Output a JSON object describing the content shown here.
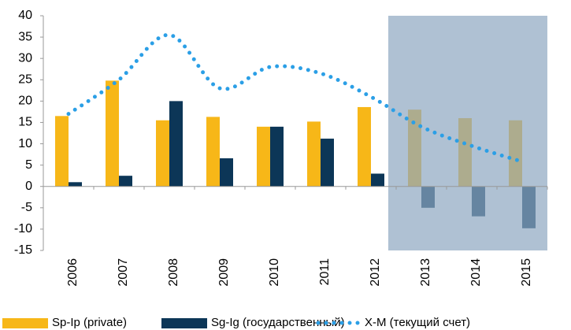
{
  "chart_data": {
    "type": "bar",
    "categories": [
      "2006",
      "2007",
      "2008",
      "2009",
      "2010",
      "2011",
      "2012",
      "2013",
      "2014",
      "2015"
    ],
    "series": [
      {
        "name": "Sp-Ip (private)",
        "type": "bar",
        "color": "#f7b718",
        "values": [
          16.5,
          24.8,
          15.5,
          16.3,
          14,
          15.2,
          18.6,
          18,
          16,
          15.5
        ]
      },
      {
        "name": "Sg-Ig (государственный)",
        "type": "bar",
        "color": "#0c3657",
        "values": [
          1,
          2.5,
          20,
          6.6,
          14,
          11.2,
          3,
          -5,
          -7,
          -9.8
        ]
      },
      {
        "name": "X-M (текущий счет)",
        "type": "line",
        "color": "#2b9fe6",
        "values": [
          17,
          25,
          35.5,
          23,
          28,
          26.5,
          21,
          14,
          9.5,
          5.8
        ]
      }
    ],
    "ylim": [
      -15,
      40
    ],
    "yticks": [
      -15,
      -10,
      -5,
      0,
      5,
      10,
      15,
      20,
      25,
      30,
      35,
      40
    ],
    "grid": false,
    "legend": "bottom",
    "shaded_region": {
      "from": "2013",
      "to": "2015",
      "color": "#8da7c0"
    }
  }
}
